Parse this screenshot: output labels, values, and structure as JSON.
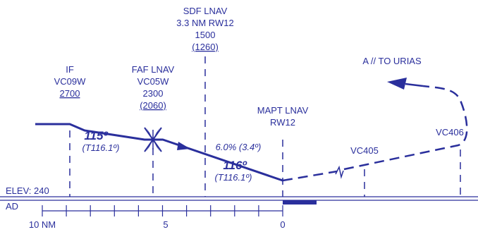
{
  "colors": {
    "ink": "#2a2f9c",
    "background": "#ffffff"
  },
  "fixes": {
    "if": {
      "line1": "IF",
      "line2": "VC09W",
      "altitude": "2700"
    },
    "faf": {
      "line1": "FAF LNAV",
      "line2": "VC05W",
      "altitude": "2300",
      "altitude_ul": "(2060)"
    },
    "sdf": {
      "line1": "SDF LNAV",
      "line2": "3.3 NM RW12",
      "altitude": "1500",
      "altitude_ul": "(1260)"
    },
    "mapt": {
      "line1": "MAPT LNAV",
      "line2": "RW12"
    },
    "vc405": {
      "label": "VC405"
    },
    "vc406": {
      "label": "VC406"
    }
  },
  "courses": {
    "initial": {
      "magnetic": "115º",
      "true": "(T116.1º)"
    },
    "final": {
      "magnetic": "116º",
      "true": "(T116.1º)",
      "gradient": "6.0% (3.4º)"
    }
  },
  "missed_approach": {
    "text": "A // TO URIAS"
  },
  "elevation": {
    "label": "ELEV: 240"
  },
  "aerodrome": {
    "label": "AD"
  },
  "distance_scale": {
    "labels": [
      "10 NM",
      "5",
      "0"
    ]
  }
}
